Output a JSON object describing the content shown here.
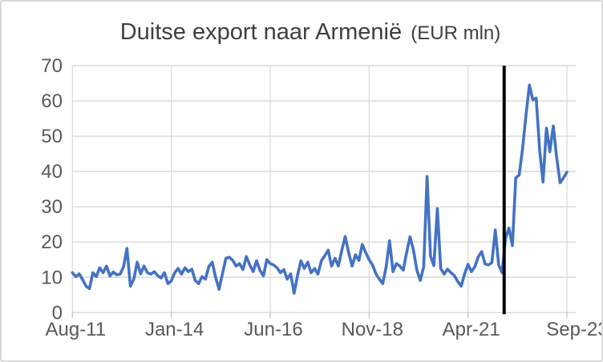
{
  "chart": {
    "background": "#ffffff",
    "border_color": "#d8d8d8",
    "gridline_color": "#d9d9d9",
    "axis_label_color": "#595959",
    "title_color": "#3f3f3f"
  },
  "chart_data": {
    "type": "line",
    "title": "Duitse export naar Armenië",
    "title_suffix": "(EUR mln)",
    "x_frequency": "monthly",
    "x_start": "Aug-2011",
    "x_end": "Sep-2023",
    "x_tick_labels": [
      "Aug-11",
      "Jan-14",
      "Jun-16",
      "Nov-18",
      "Apr-21",
      "Sep-23"
    ],
    "x_tick_month_indices": [
      0,
      29,
      58,
      87,
      116,
      145
    ],
    "y_ticks": [
      0,
      10,
      20,
      30,
      40,
      50,
      60,
      70
    ],
    "ylim": [
      0,
      70
    ],
    "grid": true,
    "legend": "none",
    "annotation_line": {
      "color": "#000000",
      "month_index": 126.6,
      "between_months": [
        "Feb-2022",
        "Mar-2022"
      ]
    },
    "series": [
      {
        "name": "Duitse export naar Armenië (EUR mln)",
        "color": "#4472c4",
        "values": [
          11.3,
          10.2,
          11.0,
          9.3,
          7.5,
          6.8,
          11.3,
          10.2,
          12.7,
          11.3,
          13.2,
          10.4,
          11.5,
          10.7,
          10.9,
          13.0,
          18.2,
          7.5,
          9.5,
          14.3,
          11.0,
          13.2,
          11.3,
          10.9,
          11.6,
          10.5,
          9.8,
          11.3,
          8.2,
          9.0,
          11.3,
          12.5,
          10.9,
          12.7,
          11.6,
          12.3,
          9.1,
          8.2,
          10.2,
          9.5,
          13.0,
          14.3,
          10.0,
          6.6,
          11.0,
          15.4,
          15.7,
          14.8,
          13.2,
          13.9,
          12.2,
          15.9,
          13.5,
          11.6,
          14.7,
          12.0,
          10.4,
          15.0,
          13.9,
          13.5,
          12.7,
          11.3,
          12.2,
          9.5,
          11.0,
          5.5,
          10.5,
          14.7,
          12.5,
          14.3,
          11.3,
          12.5,
          10.9,
          14.7,
          16.1,
          17.7,
          13.2,
          15.4,
          13.2,
          17.7,
          21.6,
          17.0,
          13.2,
          16.4,
          14.8,
          19.3,
          17.0,
          15.0,
          13.5,
          11.0,
          9.5,
          8.2,
          13.0,
          20.4,
          11.6,
          13.9,
          13.2,
          12.0,
          17.0,
          21.5,
          17.7,
          12.0,
          9.1,
          13.0,
          38.6,
          16.0,
          13.3,
          29.5,
          12.5,
          10.9,
          12.3,
          11.3,
          10.5,
          8.8,
          7.5,
          11.0,
          13.7,
          11.6,
          13.0,
          15.8,
          17.3,
          13.8,
          13.5,
          14.2,
          23.4,
          13.5,
          11.3,
          21.0,
          24.0,
          19.0,
          38.2,
          39.0,
          46.5,
          56.0,
          64.5,
          60.3,
          60.8,
          46.0,
          37.0,
          52.3,
          45.6,
          52.9,
          44.0,
          36.8,
          38.2,
          39.8
        ]
      }
    ]
  }
}
